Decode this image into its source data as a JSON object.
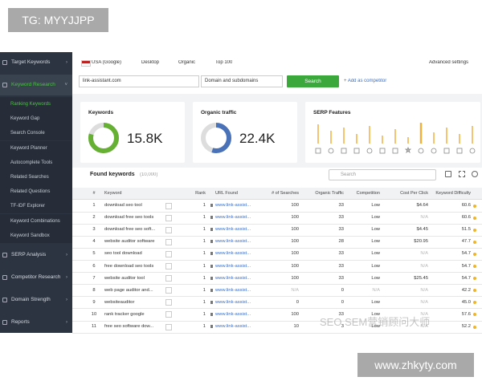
{
  "overlays": {
    "top_tag": "TG: MYYJJPP",
    "bottom_url": "www.zhkyty.com",
    "watermark": "SEO SEM营销顾问大师"
  },
  "sidebar": {
    "items": [
      {
        "label": "Target Keywords",
        "children": []
      },
      {
        "label": "Keyword Research",
        "children": [
          "Ranking Keywords",
          "Keyword Gap",
          "Search Console",
          "Keyword Planner",
          "Autocomplete Tools",
          "Related Searches",
          "Related Questions",
          "TF-IDF Explorer",
          "Keyword Combinations",
          "Keyword Sandbox"
        ]
      },
      {
        "label": "SERP Analysis",
        "children": []
      },
      {
        "label": "Competitor Research",
        "children": []
      },
      {
        "label": "Domain Strength",
        "children": []
      },
      {
        "label": "Reports",
        "children": []
      }
    ]
  },
  "toolbar": {
    "engine": "USA (Google)",
    "device": "Desktop",
    "type": "Organic",
    "depth": "Top 100",
    "advanced": "Advanced settings"
  },
  "search_bar": {
    "domain": "link-assistant.com",
    "scope": "Domain and subdomains",
    "button": "Search",
    "add": "+ Add as competitor"
  },
  "cards": {
    "keywords": {
      "title": "Keywords",
      "value": "15.8K"
    },
    "traffic": {
      "title": "Organic traffic",
      "value": "22.4K"
    },
    "serp": {
      "title": "SERP Features"
    }
  },
  "table": {
    "title": "Found keywords",
    "count": "(10,000)",
    "search": "Search",
    "columns": [
      "#",
      "Keyword",
      "Rank",
      "URL Found",
      "# of Searches",
      "Organic Traffic",
      "Competition",
      "Cost Per Click",
      "Keyword Difficulty"
    ],
    "rows": [
      [
        "1",
        "download seo tool",
        "1",
        "www.link-assist...",
        "100",
        "33",
        "Low",
        "$4.64",
        "60.6"
      ],
      [
        "2",
        "download free seo tools",
        "1",
        "www.link-assist...",
        "100",
        "33",
        "Low",
        "N/A",
        "60.6"
      ],
      [
        "3",
        "download free seo soft...",
        "1",
        "www.link-assist...",
        "100",
        "33",
        "Low",
        "$4.45",
        "51.5"
      ],
      [
        "4",
        "website auditor software",
        "1",
        "www.link-assist...",
        "100",
        "28",
        "Low",
        "$20.95",
        "47.7"
      ],
      [
        "5",
        "seo tool download",
        "1",
        "www.link-assist...",
        "100",
        "33",
        "Low",
        "N/A",
        "54.7"
      ],
      [
        "6",
        "free download seo tools",
        "1",
        "www.link-assist...",
        "100",
        "33",
        "Low",
        "N/A",
        "54.7"
      ],
      [
        "7",
        "website auditor tool",
        "1",
        "www.link-assist...",
        "100",
        "33",
        "Low",
        "$25.45",
        "54.7"
      ],
      [
        "8",
        "web page auditor and...",
        "1",
        "www.link-assist...",
        "N/A",
        "0",
        "N/A",
        "N/A",
        "42.2"
      ],
      [
        "9",
        "websiteauditor",
        "1",
        "www.link-assist...",
        "0",
        "0",
        "Low",
        "N/A",
        "45.0"
      ],
      [
        "10",
        "rank tracker google",
        "1",
        "www.link-assist...",
        "100",
        "33",
        "Low",
        "N/A",
        "57.6"
      ],
      [
        "11",
        "free seo software dow...",
        "1",
        "www.link-assist...",
        "10",
        "3",
        "Low",
        "N/A",
        "52.2"
      ]
    ]
  }
}
